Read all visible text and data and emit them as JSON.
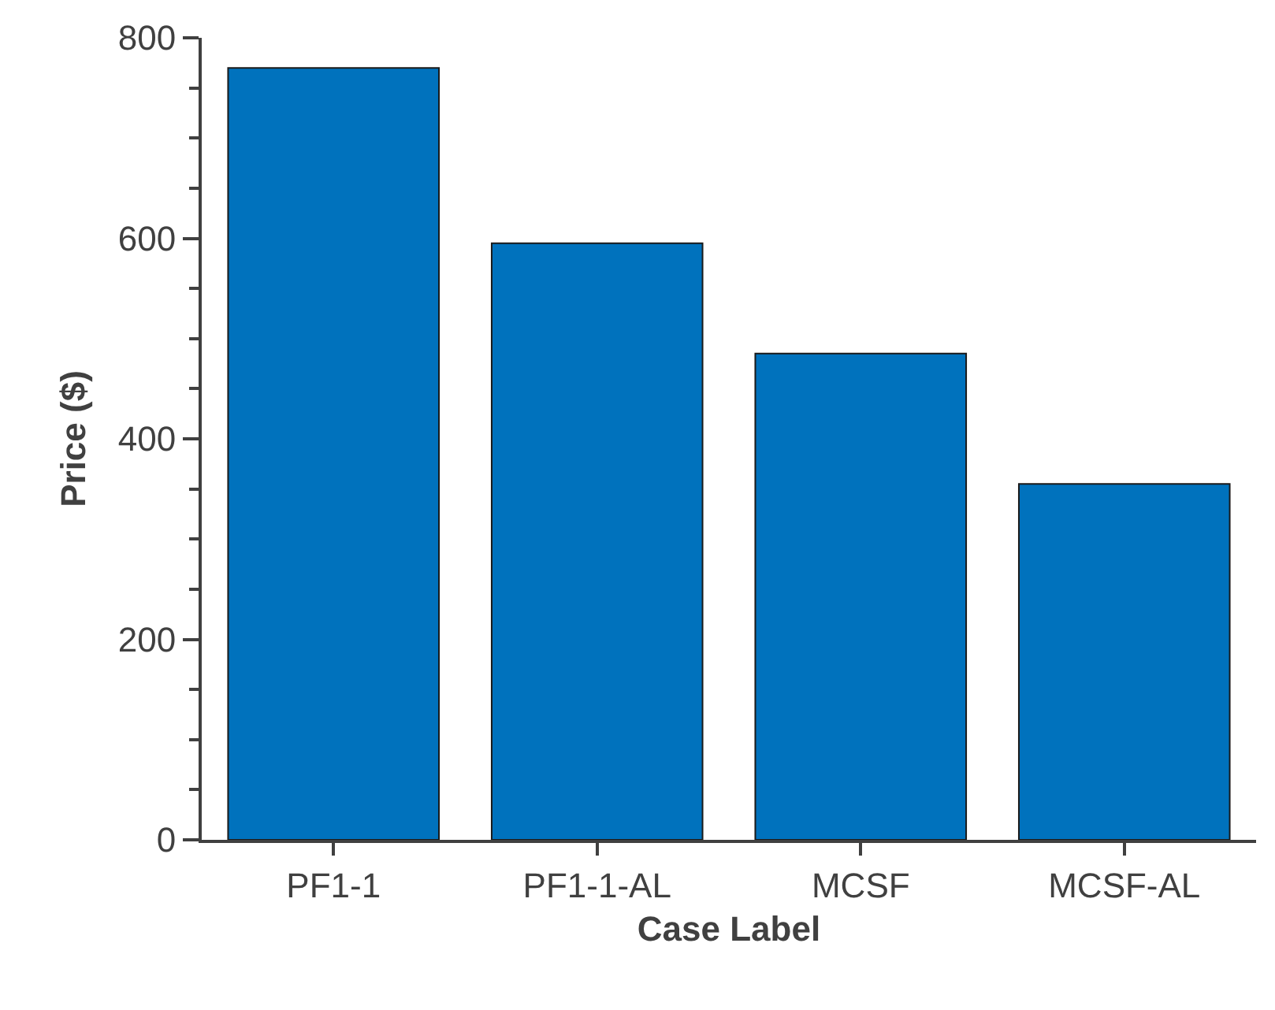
{
  "chart_data": {
    "type": "bar",
    "xlabel": "Case Label",
    "ylabel": "Price ($)",
    "categories": [
      "PF1-1",
      "PF1-1-AL",
      "MCSF",
      "MCSF-AL"
    ],
    "values": [
      770,
      595,
      485,
      355
    ],
    "color": "#0072bd",
    "ylim": [
      0,
      800
    ],
    "yticks": [
      0,
      {
        "value": 50,
        "label": null
      },
      {
        "value": 100,
        "label": null
      },
      {
        "value": 150,
        "label": null
      },
      200,
      {
        "value": 250,
        "label": null
      },
      {
        "value": 300,
        "label": null
      },
      {
        "value": 350,
        "label": null
      },
      400,
      {
        "value": 450,
        "label": null
      },
      {
        "value": 500,
        "label": null
      },
      {
        "value": 550,
        "label": null
      },
      600,
      {
        "value": 650,
        "label": null
      },
      {
        "value": 700,
        "label": null
      },
      {
        "value": 750,
        "label": null
      },
      800
    ]
  }
}
